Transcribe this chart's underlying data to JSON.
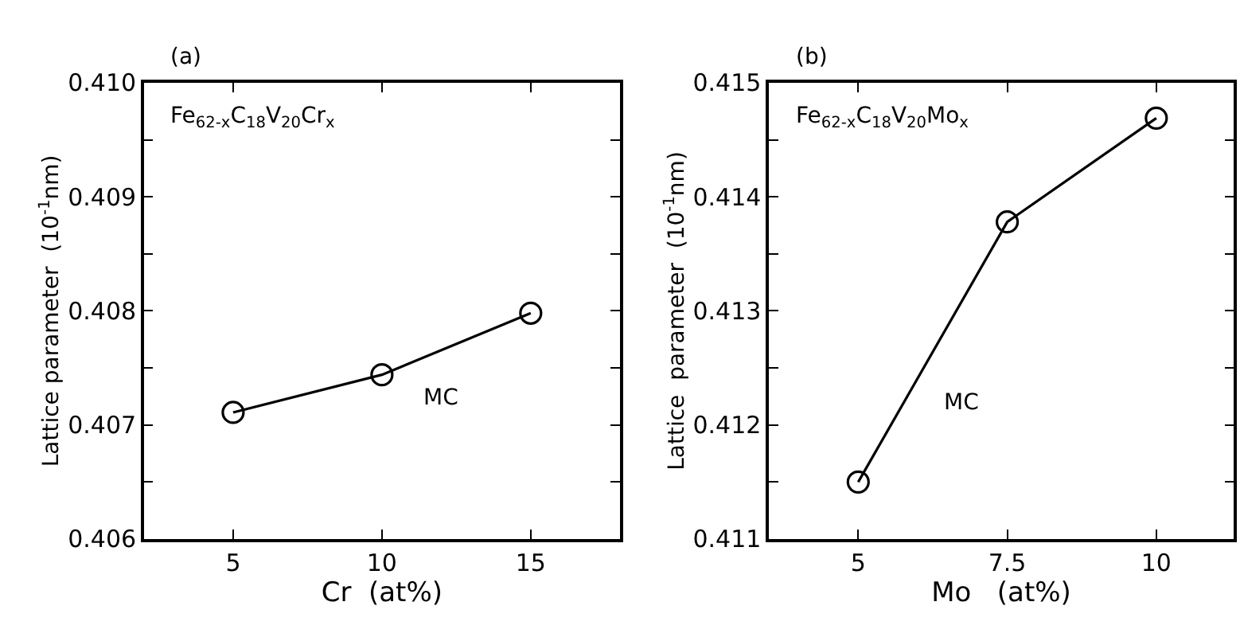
{
  "chart_data": [
    {
      "type": "line",
      "title": "(a)",
      "xlabel": "Cr  (at%)",
      "ylabel": "Lattice parameter  (10$^{-1}$nm)",
      "x": [
        5,
        10,
        15
      ],
      "series": [
        {
          "color": "#000000",
          "values": [
            0.40711,
            0.40744,
            0.40798
          ]
        }
      ],
      "xlim": [
        2,
        18
      ],
      "xticks": [
        5,
        10,
        15
      ],
      "ylim": [
        0.406,
        0.41
      ],
      "yticks": [
        0.406,
        {
          "value": 0.4065,
          "label": null
        },
        0.407,
        {
          "value": 0.4075,
          "label": null
        },
        0.408,
        {
          "value": 0.4085,
          "label": null
        },
        0.409,
        {
          "value": 0.4095,
          "label": null
        },
        {
          "value": 0.41,
          "label": "0.410"
        }
      ],
      "marker": "circle",
      "line_style": "solid",
      "annotations": [
        "Fe$_{62-x}$C$_{18}$V$_{20}$Cr$_{x}$",
        "MC"
      ]
    },
    {
      "type": "line",
      "title": "(b)",
      "xlabel": "Mo   (at%)",
      "ylabel": "Lattice  parameter  (10$^{-1}$nm)",
      "x": [
        5,
        7.5,
        10
      ],
      "series": [
        {
          "color": "#000000",
          "values": [
            0.4115,
            0.41378,
            0.41469
          ]
        }
      ],
      "xlim": [
        3.5,
        11.3
      ],
      "xticks": [
        5,
        7.5,
        10
      ],
      "ylim": [
        0.411,
        0.415
      ],
      "yticks": [
        0.411,
        {
          "value": 0.4115,
          "label": null
        },
        0.412,
        {
          "value": 0.4125,
          "label": null
        },
        0.413,
        {
          "value": 0.4135,
          "label": null
        },
        0.414,
        {
          "value": 0.4145,
          "label": null
        },
        0.415
      ],
      "marker": "circle",
      "line_style": "solid",
      "annotations": [
        "Fe$_{62-x}$C$_{18}$V$_{20}$Mo$_{x}$",
        "MC"
      ]
    }
  ]
}
